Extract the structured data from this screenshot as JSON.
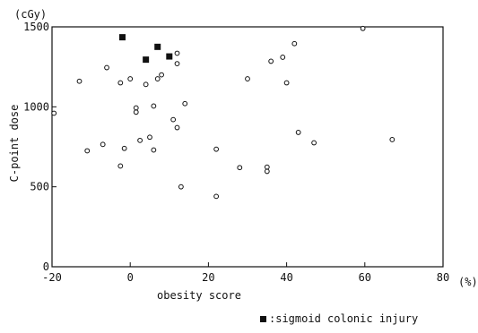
{
  "chart_data": {
    "type": "scatter",
    "title": "",
    "xlabel": "obesity score",
    "ylabel": "C-point dose",
    "x_unit": "(%)",
    "y_unit": "(cGy)",
    "xlim": [
      -20,
      80
    ],
    "ylim": [
      0,
      1500
    ],
    "x_ticks": [
      -20,
      0,
      20,
      40,
      60,
      80
    ],
    "y_ticks": [
      0,
      500,
      1000,
      1500
    ],
    "x_tick_labels": [
      "-20",
      "0",
      "20",
      "40",
      "60",
      "80"
    ],
    "y_tick_labels": [
      "0",
      "500",
      "1000",
      "1500"
    ],
    "grid": false,
    "legend_position": "bottom-right",
    "legend": {
      "label": ":sigmoid colonic injury"
    },
    "series": [
      {
        "marker": "open-circle",
        "points": [
          {
            "x": -19.5,
            "y": 960
          },
          {
            "x": -13,
            "y": 1160
          },
          {
            "x": -11,
            "y": 725
          },
          {
            "x": -7,
            "y": 765
          },
          {
            "x": -6,
            "y": 1245
          },
          {
            "x": -2.5,
            "y": 1150
          },
          {
            "x": -2.5,
            "y": 630
          },
          {
            "x": -1.5,
            "y": 740
          },
          {
            "x": 0,
            "y": 1175
          },
          {
            "x": 2.5,
            "y": 790
          },
          {
            "x": 4,
            "y": 1140
          },
          {
            "x": 5,
            "y": 810
          },
          {
            "x": 6,
            "y": 1005
          },
          {
            "x": 6,
            "y": 730
          },
          {
            "x": 7,
            "y": 1175
          },
          {
            "x": 8,
            "y": 1200
          },
          {
            "x": 11,
            "y": 920
          },
          {
            "x": 12,
            "y": 1335
          },
          {
            "x": 12,
            "y": 1270
          },
          {
            "x": 12,
            "y": 870
          },
          {
            "x": 13,
            "y": 500
          },
          {
            "x": 14,
            "y": 1020
          },
          {
            "x": 22,
            "y": 735
          },
          {
            "x": 22,
            "y": 440
          },
          {
            "x": 28,
            "y": 620
          },
          {
            "x": 30,
            "y": 1175
          },
          {
            "x": 36,
            "y": 1285
          },
          {
            "x": 39,
            "y": 1310
          },
          {
            "x": 40,
            "y": 1150
          },
          {
            "x": 42,
            "y": 1395
          },
          {
            "x": 43,
            "y": 840
          },
          {
            "x": 47,
            "y": 775
          },
          {
            "x": 59.5,
            "y": 1490
          },
          {
            "x": 67,
            "y": 795
          }
        ],
        "overlapping_points": [
          {
            "x": 1.5,
            "y": 980
          },
          {
            "x": 35,
            "y": 610
          }
        ]
      },
      {
        "name": "sigmoid colonic injury",
        "marker": "filled-square",
        "points": [
          {
            "x": -2,
            "y": 1435
          },
          {
            "x": 4,
            "y": 1295
          },
          {
            "x": 7,
            "y": 1375
          },
          {
            "x": 10,
            "y": 1315
          }
        ]
      }
    ]
  }
}
